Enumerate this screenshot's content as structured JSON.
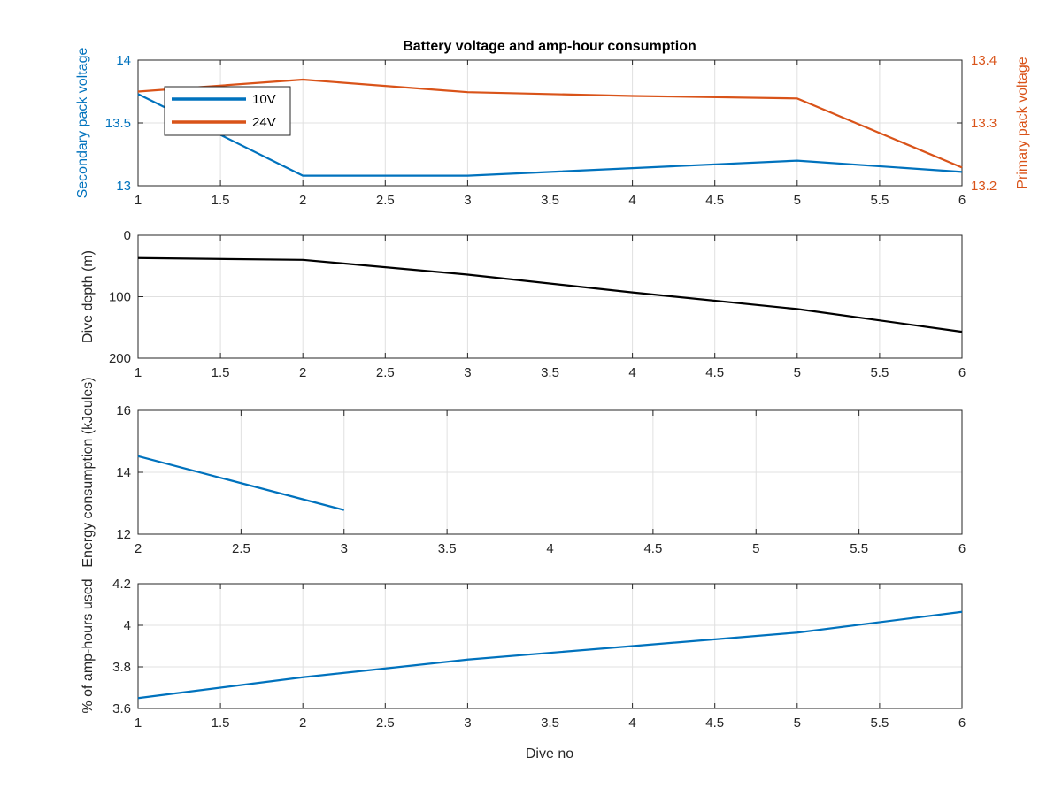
{
  "figure": {
    "title": "Battery voltage and amp-hour consumption",
    "xlabel": "Dive no"
  },
  "colors": {
    "blue": "#0072BD",
    "orange": "#D95319",
    "black": "#000000",
    "grid": "#e0e0e0",
    "axis": "#262626"
  },
  "chart_data": [
    {
      "type": "line",
      "title": "Battery voltage and amp-hour consumption",
      "xlabel": "",
      "ylabel": "Secondary pack voltage",
      "y2label": "Primary pack voltage",
      "xlim": [
        1,
        6
      ],
      "ylim": [
        13,
        14
      ],
      "y2lim": [
        13.2,
        13.4
      ],
      "xticks": [
        "1",
        "1.5",
        "2",
        "2.5",
        "3",
        "3.5",
        "4",
        "4.5",
        "5",
        "5.5",
        "6"
      ],
      "yticks": [
        "13",
        "13.5",
        "14"
      ],
      "y2ticks": [
        "13.2",
        "13.3",
        "13.4"
      ],
      "grid": true,
      "legend": {
        "placement": "top-left",
        "entries": [
          "10V",
          "24V"
        ]
      },
      "series": [
        {
          "name": "10V",
          "axis": "left",
          "color": "#0072BD",
          "x": [
            1,
            2,
            3,
            4,
            5,
            6
          ],
          "y": [
            13.73,
            13.08,
            13.08,
            13.14,
            13.2,
            13.11
          ]
        },
        {
          "name": "24V",
          "axis": "right",
          "color": "#D95319",
          "x": [
            1,
            2,
            3,
            4,
            5,
            6
          ],
          "y": [
            13.35,
            13.369,
            13.349,
            13.343,
            13.339,
            13.229
          ]
        }
      ]
    },
    {
      "type": "line",
      "xlabel": "",
      "ylabel": "Dive depth (m)",
      "xlim": [
        1,
        6
      ],
      "ylim": [
        0,
        200
      ],
      "y_reversed": true,
      "xticks": [
        "1",
        "1.5",
        "2",
        "2.5",
        "3",
        "3.5",
        "4",
        "4.5",
        "5",
        "5.5",
        "6"
      ],
      "yticks": [
        "0",
        "100",
        "200"
      ],
      "grid": true,
      "series": [
        {
          "color": "#000000",
          "x": [
            1,
            1.3,
            2,
            3,
            4,
            5,
            6
          ],
          "y": [
            37,
            38,
            40,
            64,
            93,
            120,
            157
          ]
        }
      ]
    },
    {
      "type": "line",
      "xlabel": "",
      "ylabel": "Energy consumption (kJoules)",
      "xlim": [
        2,
        6
      ],
      "ylim": [
        12,
        16
      ],
      "xticks": [
        "2",
        "2.5",
        "3",
        "3.5",
        "4",
        "4.5",
        "5",
        "5.5",
        "6"
      ],
      "yticks": [
        "12",
        "14",
        "16"
      ],
      "grid": true,
      "series": [
        {
          "color": "#0072BD",
          "x": [
            2,
            3
          ],
          "y": [
            14.52,
            12.78
          ]
        }
      ]
    },
    {
      "type": "line",
      "xlabel": "Dive no",
      "ylabel": "% of amp-hours used",
      "xlim": [
        1,
        6
      ],
      "ylim": [
        3.6,
        4.2
      ],
      "xticks": [
        "1",
        "1.5",
        "2",
        "2.5",
        "3",
        "3.5",
        "4",
        "4.5",
        "5",
        "5.5",
        "6"
      ],
      "yticks": [
        "3.6",
        "3.8",
        "4",
        "4.2"
      ],
      "grid": true,
      "series": [
        {
          "color": "#0072BD",
          "x": [
            1,
            2,
            3,
            4,
            5,
            6
          ],
          "y": [
            3.65,
            3.75,
            3.835,
            3.9,
            3.965,
            4.065
          ]
        }
      ]
    }
  ]
}
